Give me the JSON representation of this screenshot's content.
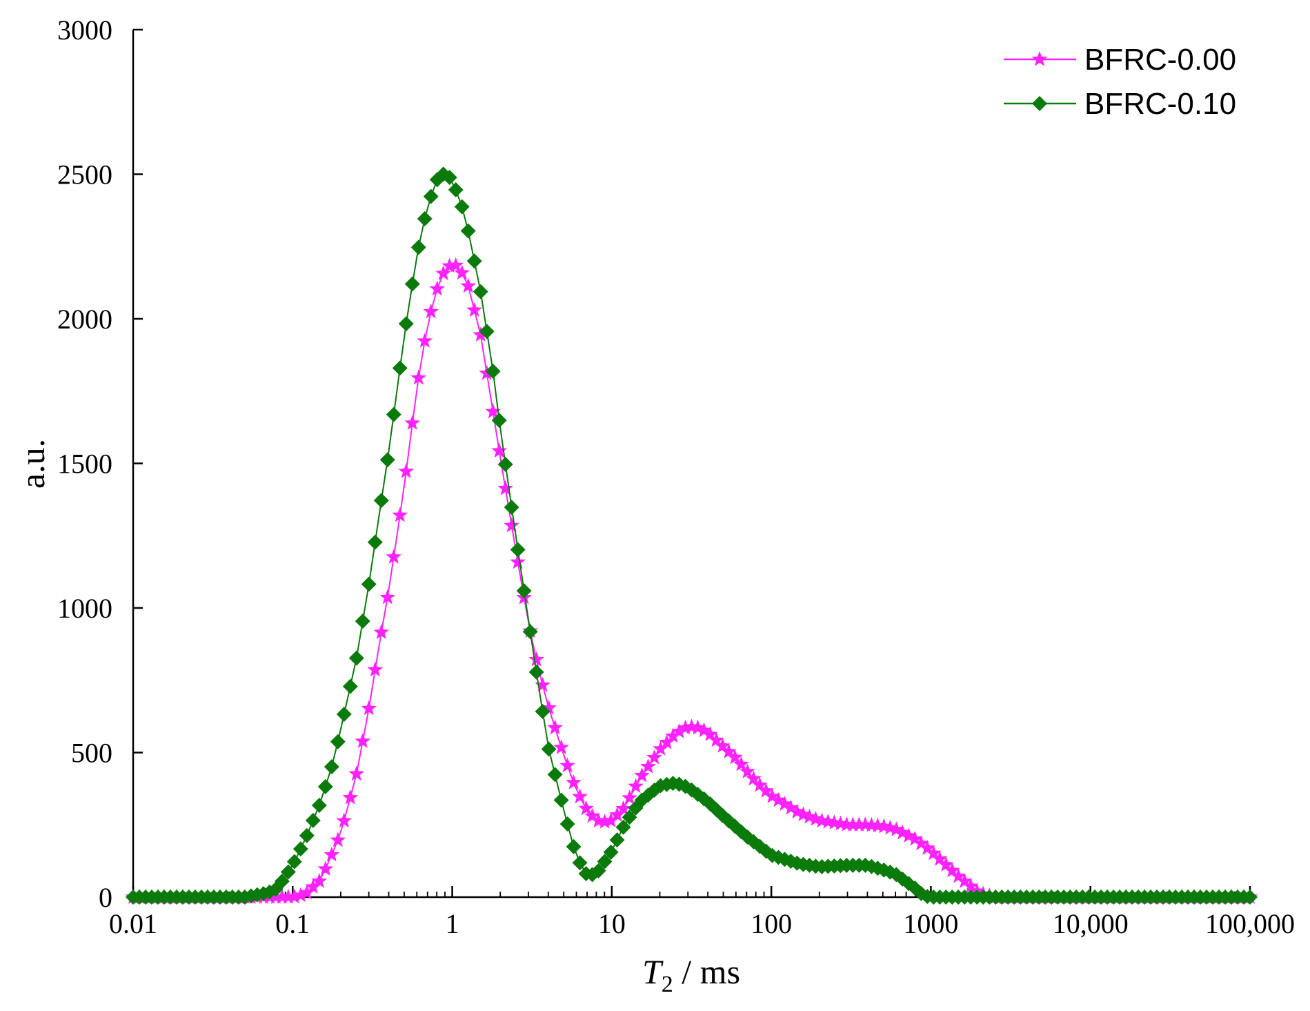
{
  "chart_data": {
    "type": "line",
    "xscale": "log",
    "xlim": [
      0.01,
      100000
    ],
    "ylim": [
      0,
      3000
    ],
    "xlabel": {
      "italic": "T",
      "subscript": "2",
      "rest": " / ms"
    },
    "ylabel": "a.u.",
    "x_ticks": [
      {
        "value": 0.01,
        "label": "0.01"
      },
      {
        "value": 0.1,
        "label": "0.1"
      },
      {
        "value": 1,
        "label": "1"
      },
      {
        "value": 10,
        "label": "10"
      },
      {
        "value": 100,
        "label": "100"
      },
      {
        "value": 1000,
        "label": "1000"
      },
      {
        "value": 10000,
        "label": "10,000"
      },
      {
        "value": 100000,
        "label": "100,000"
      }
    ],
    "y_ticks": [
      {
        "value": 0,
        "label": "0"
      },
      {
        "value": 500,
        "label": "500"
      },
      {
        "value": 1000,
        "label": "1000"
      },
      {
        "value": 1500,
        "label": "1500"
      },
      {
        "value": 2000,
        "label": "2000"
      },
      {
        "value": 2500,
        "label": "2500"
      },
      {
        "value": 3000,
        "label": "3000"
      }
    ],
    "grid": false,
    "legend_position": "top-right",
    "series": [
      {
        "name": "BFRC-0.00",
        "color": "#ff22ff",
        "marker": "star",
        "points": [
          [
            0.01,
            0
          ],
          [
            0.05,
            0
          ],
          [
            0.1,
            0
          ],
          [
            0.12,
            10
          ],
          [
            0.15,
            60
          ],
          [
            0.18,
            160
          ],
          [
            0.2,
            220
          ],
          [
            0.25,
            420
          ],
          [
            0.3,
            650
          ],
          [
            0.35,
            880
          ],
          [
            0.4,
            1060
          ],
          [
            0.5,
            1420
          ],
          [
            0.6,
            1760
          ],
          [
            0.7,
            1980
          ],
          [
            0.8,
            2100
          ],
          [
            0.9,
            2170
          ],
          [
            1.0,
            2190
          ],
          [
            1.1,
            2180
          ],
          [
            1.25,
            2120
          ],
          [
            1.5,
            1950
          ],
          [
            1.8,
            1680
          ],
          [
            2.0,
            1520
          ],
          [
            2.5,
            1200
          ],
          [
            3.0,
            950
          ],
          [
            3.5,
            780
          ],
          [
            4.0,
            660
          ],
          [
            5.0,
            490
          ],
          [
            6.0,
            370
          ],
          [
            7.0,
            300
          ],
          [
            8.0,
            265
          ],
          [
            9.0,
            260
          ],
          [
            10,
            265
          ],
          [
            12,
            310
          ],
          [
            15,
            410
          ],
          [
            20,
            510
          ],
          [
            25,
            565
          ],
          [
            30,
            590
          ],
          [
            35,
            585
          ],
          [
            40,
            570
          ],
          [
            50,
            520
          ],
          [
            60,
            480
          ],
          [
            80,
            400
          ],
          [
            100,
            350
          ],
          [
            150,
            290
          ],
          [
            200,
            265
          ],
          [
            300,
            250
          ],
          [
            400,
            250
          ],
          [
            500,
            245
          ],
          [
            600,
            235
          ],
          [
            800,
            200
          ],
          [
            1000,
            160
          ],
          [
            1500,
            70
          ],
          [
            2000,
            15
          ],
          [
            2500,
            0
          ],
          [
            10000,
            0
          ],
          [
            100000,
            0
          ]
        ]
      },
      {
        "name": "BFRC-0.10",
        "color": "#0a7a0a",
        "marker": "diamond",
        "points": [
          [
            0.01,
            0
          ],
          [
            0.05,
            0
          ],
          [
            0.07,
            15
          ],
          [
            0.08,
            30
          ],
          [
            0.1,
            110
          ],
          [
            0.12,
            200
          ],
          [
            0.15,
            330
          ],
          [
            0.18,
            470
          ],
          [
            0.2,
            580
          ],
          [
            0.25,
            820
          ],
          [
            0.3,
            1080
          ],
          [
            0.35,
            1330
          ],
          [
            0.4,
            1540
          ],
          [
            0.5,
            1940
          ],
          [
            0.6,
            2220
          ],
          [
            0.7,
            2390
          ],
          [
            0.8,
            2480
          ],
          [
            0.9,
            2505
          ],
          [
            1.0,
            2480
          ],
          [
            1.2,
            2360
          ],
          [
            1.5,
            2100
          ],
          [
            1.8,
            1820
          ],
          [
            2.0,
            1620
          ],
          [
            2.5,
            1250
          ],
          [
            3.0,
            960
          ],
          [
            3.5,
            720
          ],
          [
            4.0,
            520
          ],
          [
            5.0,
            300
          ],
          [
            6.0,
            140
          ],
          [
            7.0,
            75
          ],
          [
            8.0,
            80
          ],
          [
            10,
            160
          ],
          [
            12,
            250
          ],
          [
            15,
            330
          ],
          [
            20,
            385
          ],
          [
            25,
            395
          ],
          [
            30,
            380
          ],
          [
            40,
            330
          ],
          [
            50,
            280
          ],
          [
            70,
            210
          ],
          [
            100,
            145
          ],
          [
            150,
            115
          ],
          [
            200,
            105
          ],
          [
            300,
            110
          ],
          [
            400,
            110
          ],
          [
            500,
            95
          ],
          [
            600,
            80
          ],
          [
            800,
            30
          ],
          [
            900,
            5
          ],
          [
            1000,
            0
          ],
          [
            10000,
            0
          ],
          [
            100000,
            0
          ]
        ]
      }
    ]
  }
}
